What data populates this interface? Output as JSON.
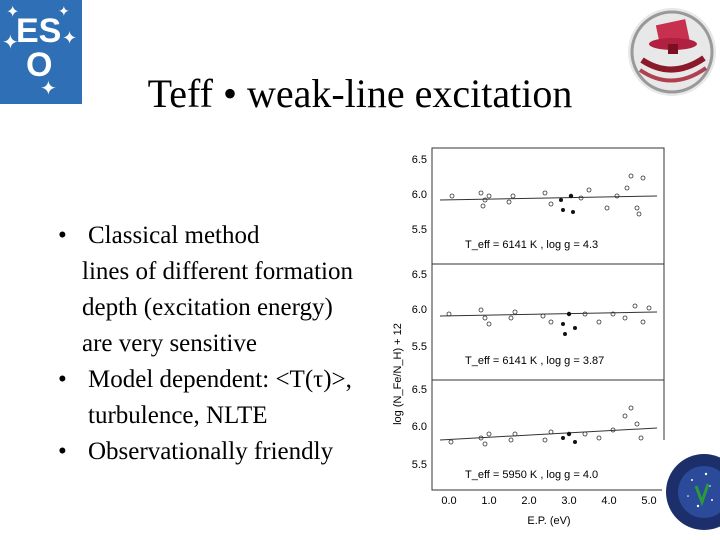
{
  "title": "Teff •  weak-line excitation",
  "logo": {
    "letters_top": "ES",
    "letter_bottom": "O"
  },
  "bullets": [
    {
      "bullet": "•",
      "text": "Classical method",
      "continuations": [
        "lines of different formation",
        "depth (excitation energy)",
        "are very sensitive"
      ]
    },
    {
      "bullet": "•",
      "text": "Model dependent: <T(τ)>,",
      "continuations": [
        "turbulence, NLTE"
      ]
    },
    {
      "bullet": "•",
      "text": "Observationally friendly",
      "continuations": []
    }
  ],
  "figure": {
    "ylabel": "log (N_Fe/N_H) + 12",
    "xlabel": "E.P. (eV)",
    "x_ticks": [
      "0.0",
      "1.0",
      "2.0",
      "3.0",
      "4.0",
      "5.0"
    ],
    "panels": [
      {
        "y_ticks": [
          "6.5",
          "6.0",
          "5.5"
        ],
        "caption": "T_eff = 6141 K , log g = 4.3"
      },
      {
        "y_ticks": [
          "6.5",
          "6.0",
          "5.5"
        ],
        "caption": "T_eff = 6141 K , log g = 3.87"
      },
      {
        "y_ticks": [
          "6.5",
          "6.0",
          "5.5"
        ],
        "caption": "T_eff = 5950 K , log g = 4.0"
      }
    ]
  },
  "colors": {
    "eso_blue": "#2f6fb5",
    "iac_navy": "#1d2f6b"
  }
}
